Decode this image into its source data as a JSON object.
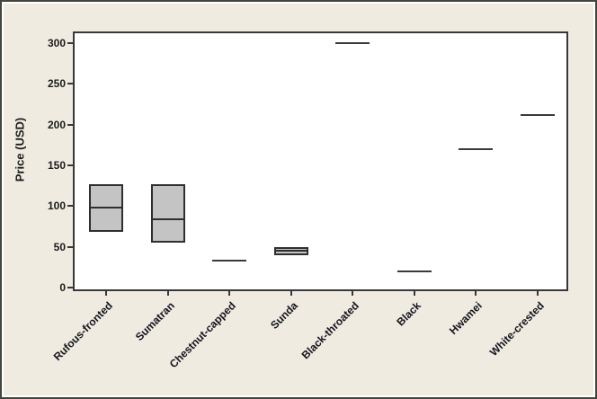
{
  "chart_data": {
    "type": "boxplot",
    "title": "",
    "xlabel": "",
    "ylabel": "Price (USD)",
    "ylim": [
      0,
      300
    ],
    "yticks": [
      0,
      50,
      100,
      150,
      200,
      250,
      300
    ],
    "grid": false,
    "legend": false,
    "categories": [
      "Rufous-fronted",
      "Sumatran",
      "Chestnut-capped",
      "Sunda",
      "Black-throated",
      "Black",
      "Hwamei",
      "White-crested"
    ],
    "boxes": [
      {
        "category": "Rufous-fronted",
        "type": "box",
        "q1": 68,
        "median": 98,
        "q3": 127
      },
      {
        "category": "Sumatran",
        "type": "box",
        "q1": 55,
        "median": 84,
        "q3": 127
      },
      {
        "category": "Chestnut-capped",
        "type": "line",
        "value": 33
      },
      {
        "category": "Sunda",
        "type": "box",
        "q1": 40,
        "median": 45,
        "q3": 50
      },
      {
        "category": "Black-throated",
        "type": "line",
        "value": 300
      },
      {
        "category": "Black",
        "type": "line",
        "value": 20
      },
      {
        "category": "Hwamei",
        "type": "line",
        "value": 170
      },
      {
        "category": "White-crested",
        "type": "line",
        "value": 212
      }
    ],
    "colors": {
      "figure_background": "#EFEBE0",
      "plot_background": "#FFFFFF",
      "box_fill": "#C4C4C4",
      "box_border": "#2F2F2F",
      "axis": "#383838",
      "text": "#1B1B1B"
    }
  }
}
